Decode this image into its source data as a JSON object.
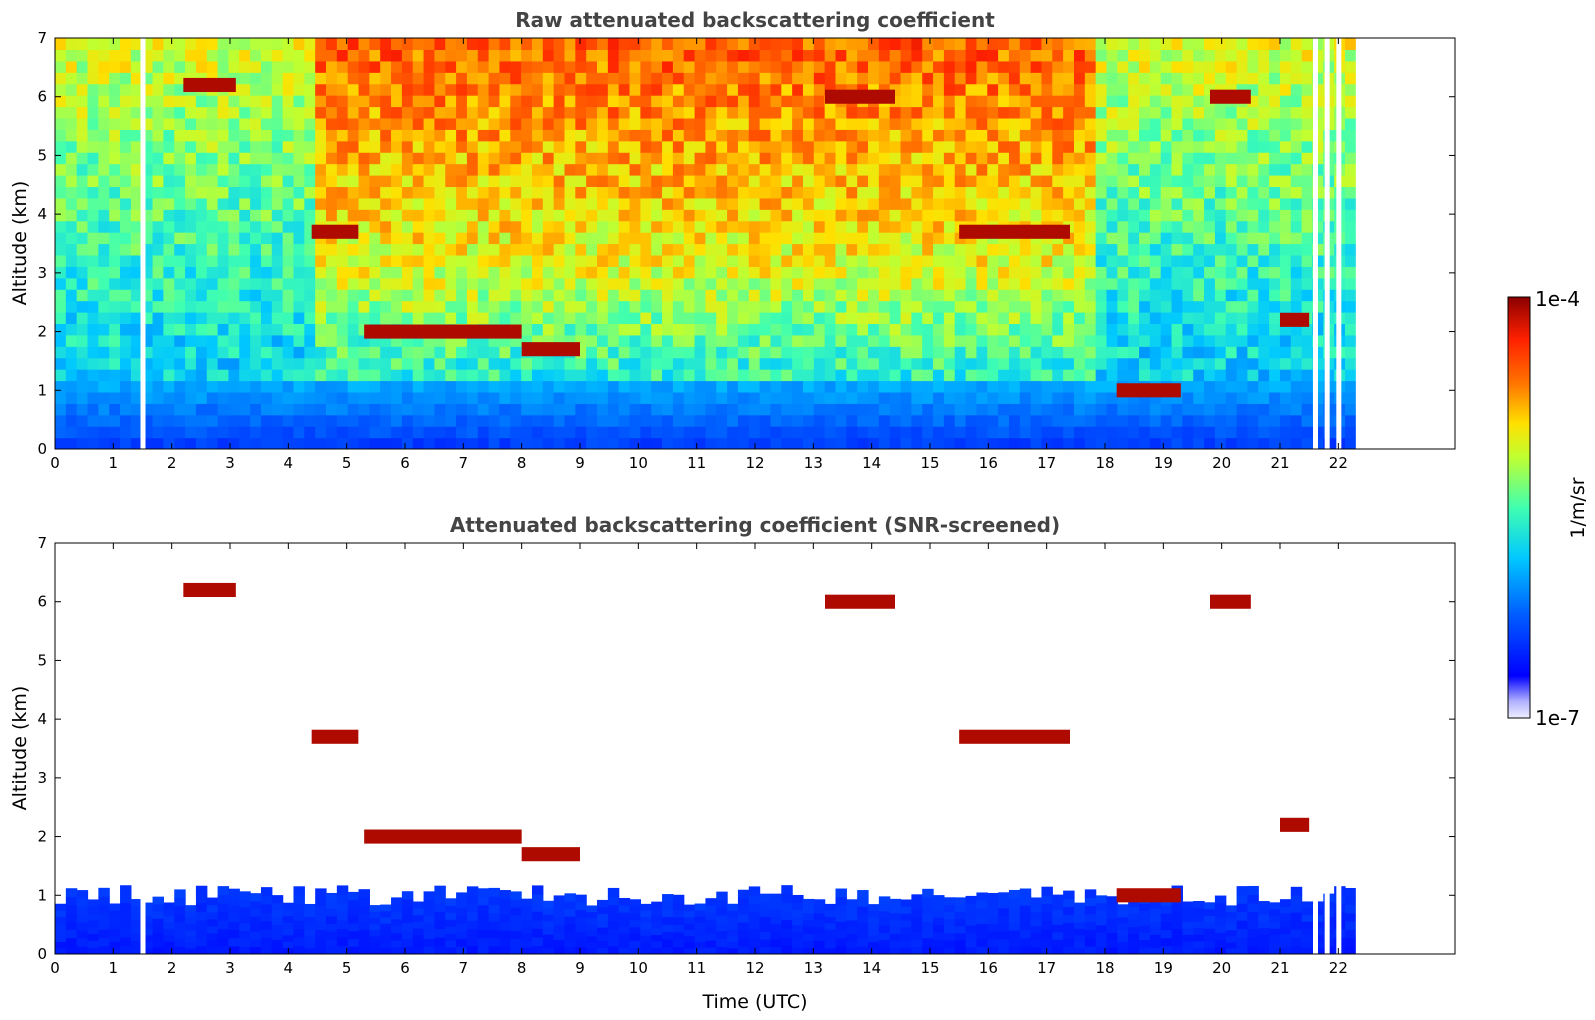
{
  "chart_data": [
    {
      "type": "heatmap",
      "title": "Raw attenuated backscattering coefficient",
      "xlabel": "",
      "ylabel": "Altitude (km)",
      "xlim": [
        0,
        24
      ],
      "ylim": [
        0,
        7
      ],
      "x_ticks": [
        "0",
        "1",
        "2",
        "3",
        "4",
        "5",
        "6",
        "7",
        "8",
        "9",
        "10",
        "11",
        "12",
        "13",
        "14",
        "15",
        "16",
        "17",
        "18",
        "19",
        "20",
        "21",
        "22"
      ],
      "y_ticks": [
        "0",
        "1",
        "2",
        "3",
        "4",
        "5",
        "6",
        "7"
      ],
      "data_end_hour": 22.3,
      "missing_data_hours": [
        1.5,
        21.6,
        21.8,
        22.0
      ],
      "cloud_layers": [
        {
          "t_start": 2.2,
          "t_end": 3.1,
          "altitude_km": 6.2
        },
        {
          "t_start": 4.4,
          "t_end": 5.2,
          "altitude_km": 3.7
        },
        {
          "t_start": 5.3,
          "t_end": 8.0,
          "altitude_km": 2.0
        },
        {
          "t_start": 8.0,
          "t_end": 9.0,
          "altitude_km": 1.7
        },
        {
          "t_start": 13.2,
          "t_end": 14.4,
          "altitude_km": 6.0
        },
        {
          "t_start": 15.5,
          "t_end": 17.4,
          "altitude_km": 3.7
        },
        {
          "t_start": 18.2,
          "t_end": 19.3,
          "altitude_km": 1.0
        },
        {
          "t_start": 19.8,
          "t_end": 20.5,
          "altitude_km": 6.0
        },
        {
          "t_start": 21.0,
          "t_end": 21.5,
          "altitude_km": 2.2
        }
      ]
    },
    {
      "type": "heatmap",
      "title": "Attenuated backscattering coefficient (SNR-screened)",
      "xlabel": "Time (UTC)",
      "ylabel": "Altitude (km)",
      "xlim": [
        0,
        24
      ],
      "ylim": [
        0,
        7
      ],
      "x_ticks": [
        "0",
        "1",
        "2",
        "3",
        "4",
        "5",
        "6",
        "7",
        "8",
        "9",
        "10",
        "11",
        "12",
        "13",
        "14",
        "15",
        "16",
        "17",
        "18",
        "19",
        "20",
        "21",
        "22"
      ],
      "y_ticks": [
        "0",
        "1",
        "2",
        "3",
        "4",
        "5",
        "6",
        "7"
      ],
      "boundary_layer_top_km": 1.0
    }
  ],
  "colorbar": {
    "label": "1/m/sr",
    "max_label": "1e-4",
    "min_label": "1e-7",
    "scale": "log",
    "colormap": [
      "#ffffff",
      "#0000ff",
      "#00bfff",
      "#66ffaa",
      "#ffff00",
      "#ff6a00",
      "#8b0000"
    ]
  }
}
